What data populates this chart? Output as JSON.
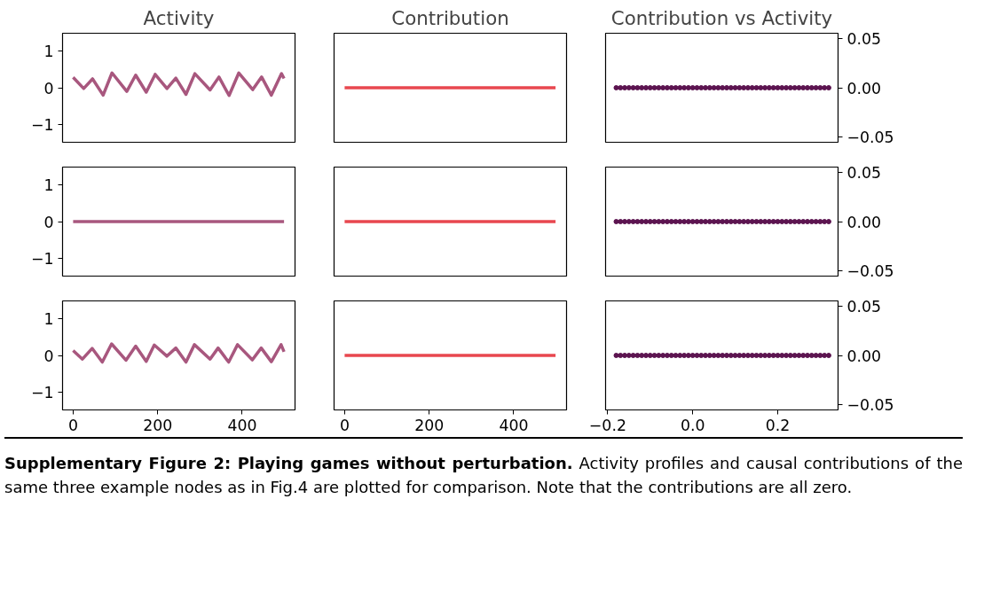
{
  "chart_data": [
    {
      "type": "line",
      "title": "Activity",
      "x": [
        0,
        25,
        46,
        71,
        92,
        127,
        148,
        173,
        194,
        222,
        243,
        267,
        288,
        324,
        345,
        369,
        392,
        425,
        446,
        469,
        493,
        499
      ],
      "series": [
        {
          "color": "#a8577e",
          "values": [
            0.28,
            -0.02,
            0.24,
            -0.2,
            0.4,
            -0.1,
            0.34,
            -0.12,
            0.36,
            -0.02,
            0.26,
            -0.18,
            0.38,
            -0.06,
            0.29,
            -0.21,
            0.4,
            -0.05,
            0.29,
            -0.2,
            0.38,
            0.25
          ]
        }
      ],
      "xlim": [
        -25,
        525
      ],
      "ylim": [
        -1.47,
        1.47
      ],
      "yticks": [
        {
          "value": -1,
          "label": "−1"
        },
        0,
        1
      ],
      "tick_labels": "y"
    },
    {
      "type": "line",
      "title": "Contribution",
      "x": [
        0,
        499
      ],
      "series": [
        {
          "color": "#e8474f",
          "values": [
            0,
            0
          ]
        }
      ],
      "xlim": [
        -25,
        525
      ],
      "ylim": [
        -1.47,
        1.47
      ],
      "tick_labels": false
    },
    {
      "type": "scatter",
      "title": "Contribution vs Activity",
      "x": [
        -0.18,
        -0.17,
        -0.16,
        -0.15,
        -0.14,
        -0.13,
        -0.12,
        -0.11,
        -0.1,
        -0.09,
        -0.08,
        -0.07,
        -0.06,
        -0.05,
        -0.04,
        -0.03,
        -0.02,
        -0.01,
        0,
        0.01,
        0.02,
        0.03,
        0.04,
        0.05,
        0.06,
        0.07,
        0.08,
        0.09,
        0.1,
        0.11,
        0.12,
        0.13,
        0.14,
        0.15,
        0.16,
        0.17,
        0.18,
        0.19,
        0.2,
        0.21,
        0.22,
        0.23,
        0.24,
        0.25,
        0.26,
        0.27,
        0.28,
        0.29,
        0.3,
        0.31,
        0.32
      ],
      "series": [
        {
          "color": "#5c1450",
          "values": [
            0,
            0,
            0,
            0,
            0,
            0,
            0,
            0,
            0,
            0,
            0,
            0,
            0,
            0,
            0,
            0,
            0,
            0,
            0,
            0,
            0,
            0,
            0,
            0,
            0,
            0,
            0,
            0,
            0,
            0,
            0,
            0,
            0,
            0,
            0,
            0,
            0,
            0,
            0,
            0,
            0,
            0,
            0,
            0,
            0,
            0,
            0,
            0,
            0,
            0,
            0
          ]
        }
      ],
      "xlim": [
        -0.205,
        0.342
      ],
      "ylim": [
        -0.055,
        0.055
      ],
      "yticks": [
        {
          "value": -0.05,
          "label": "−0.05"
        },
        {
          "value": 0,
          "label": "0.00"
        },
        {
          "value": 0.05,
          "label": "0.05"
        }
      ],
      "tick_labels": "y",
      "marker": "circle"
    },
    {
      "type": "line",
      "x": [
        0,
        499
      ],
      "series": [
        {
          "color": "#a8577e",
          "values": [
            0,
            0
          ]
        }
      ],
      "xlim": [
        -25,
        525
      ],
      "ylim": [
        -1.47,
        1.47
      ],
      "yticks": [
        {
          "value": -1,
          "label": "−1"
        },
        0,
        1
      ],
      "tick_labels": "y"
    },
    {
      "type": "line",
      "x": [
        0,
        499
      ],
      "series": [
        {
          "color": "#e8474f",
          "values": [
            0,
            0
          ]
        }
      ],
      "xlim": [
        -25,
        525
      ],
      "ylim": [
        -1.47,
        1.47
      ],
      "tick_labels": false
    },
    {
      "type": "scatter",
      "x": [
        -0.18,
        -0.17,
        -0.16,
        -0.15,
        -0.14,
        -0.13,
        -0.12,
        -0.11,
        -0.1,
        -0.09,
        -0.08,
        -0.07,
        -0.06,
        -0.05,
        -0.04,
        -0.03,
        -0.02,
        -0.01,
        0,
        0.01,
        0.02,
        0.03,
        0.04,
        0.05,
        0.06,
        0.07,
        0.08,
        0.09,
        0.1,
        0.11,
        0.12,
        0.13,
        0.14,
        0.15,
        0.16,
        0.17,
        0.18,
        0.19,
        0.2,
        0.21,
        0.22,
        0.23,
        0.24,
        0.25,
        0.26,
        0.27,
        0.28,
        0.29,
        0.3,
        0.31,
        0.32
      ],
      "series": [
        {
          "color": "#5c1450",
          "values": [
            0,
            0,
            0,
            0,
            0,
            0,
            0,
            0,
            0,
            0,
            0,
            0,
            0,
            0,
            0,
            0,
            0,
            0,
            0,
            0,
            0,
            0,
            0,
            0,
            0,
            0,
            0,
            0,
            0,
            0,
            0,
            0,
            0,
            0,
            0,
            0,
            0,
            0,
            0,
            0,
            0,
            0,
            0,
            0,
            0,
            0,
            0,
            0,
            0,
            0,
            0
          ]
        }
      ],
      "xlim": [
        -0.205,
        0.342
      ],
      "ylim": [
        -0.055,
        0.055
      ],
      "yticks": [
        {
          "value": -0.05,
          "label": "−0.05"
        },
        {
          "value": 0,
          "label": "0.00"
        },
        {
          "value": 0.05,
          "label": "0.05"
        }
      ],
      "tick_labels": "y",
      "marker": "circle"
    },
    {
      "type": "line",
      "x": [
        0,
        22,
        45,
        69,
        91,
        125,
        148,
        173,
        192,
        222,
        243,
        267,
        287,
        324,
        343,
        368,
        389,
        424,
        445,
        469,
        492,
        499
      ],
      "series": [
        {
          "color": "#a8577e",
          "values": [
            0.13,
            -0.1,
            0.19,
            -0.18,
            0.31,
            -0.13,
            0.25,
            -0.16,
            0.28,
            -0.02,
            0.2,
            -0.18,
            0.29,
            -0.1,
            0.2,
            -0.18,
            0.29,
            -0.12,
            0.2,
            -0.17,
            0.29,
            0.1
          ]
        }
      ],
      "xlim": [
        -25,
        525
      ],
      "ylim": [
        -1.47,
        1.47
      ],
      "xticks": [
        0,
        200,
        400
      ],
      "yticks": [
        {
          "value": -1,
          "label": "−1"
        },
        0,
        1
      ]
    },
    {
      "type": "line",
      "x": [
        0,
        499
      ],
      "series": [
        {
          "color": "#e8474f",
          "values": [
            0,
            0
          ]
        }
      ],
      "xlim": [
        -25,
        525
      ],
      "ylim": [
        -1.47,
        1.47
      ],
      "xticks": [
        0,
        200,
        400
      ],
      "tick_labels": "x"
    },
    {
      "type": "scatter",
      "x": [
        -0.18,
        -0.17,
        -0.16,
        -0.15,
        -0.14,
        -0.13,
        -0.12,
        -0.11,
        -0.1,
        -0.09,
        -0.08,
        -0.07,
        -0.06,
        -0.05,
        -0.04,
        -0.03,
        -0.02,
        -0.01,
        0,
        0.01,
        0.02,
        0.03,
        0.04,
        0.05,
        0.06,
        0.07,
        0.08,
        0.09,
        0.1,
        0.11,
        0.12,
        0.13,
        0.14,
        0.15,
        0.16,
        0.17,
        0.18,
        0.19,
        0.2,
        0.21,
        0.22,
        0.23,
        0.24,
        0.25,
        0.26,
        0.27,
        0.28,
        0.29,
        0.3,
        0.31,
        0.32
      ],
      "series": [
        {
          "color": "#5c1450",
          "values": [
            0,
            0,
            0,
            0,
            0,
            0,
            0,
            0,
            0,
            0,
            0,
            0,
            0,
            0,
            0,
            0,
            0,
            0,
            0,
            0,
            0,
            0,
            0,
            0,
            0,
            0,
            0,
            0,
            0,
            0,
            0,
            0,
            0,
            0,
            0,
            0,
            0,
            0,
            0,
            0,
            0,
            0,
            0,
            0,
            0,
            0,
            0,
            0,
            0,
            0,
            0
          ]
        }
      ],
      "xlim": [
        -0.205,
        0.342
      ],
      "ylim": [
        -0.055,
        0.055
      ],
      "xticks": [
        {
          "value": -0.2,
          "label": "−0.2"
        },
        {
          "value": 0,
          "label": "0.0"
        },
        {
          "value": 0.2,
          "label": "0.2"
        }
      ],
      "yticks": [
        {
          "value": -0.05,
          "label": "−0.05"
        },
        {
          "value": 0,
          "label": "0.00"
        },
        {
          "value": 0.05,
          "label": "0.05"
        }
      ],
      "marker": "circle",
      "annotations": [
        "Supplementary Figure 2: Playing games without perturbation.",
        "Activity profiles and causal contributions of the same three example nodes as in Fig.4 are plotted for comparison. Note that the contributions are all zero."
      ]
    }
  ]
}
